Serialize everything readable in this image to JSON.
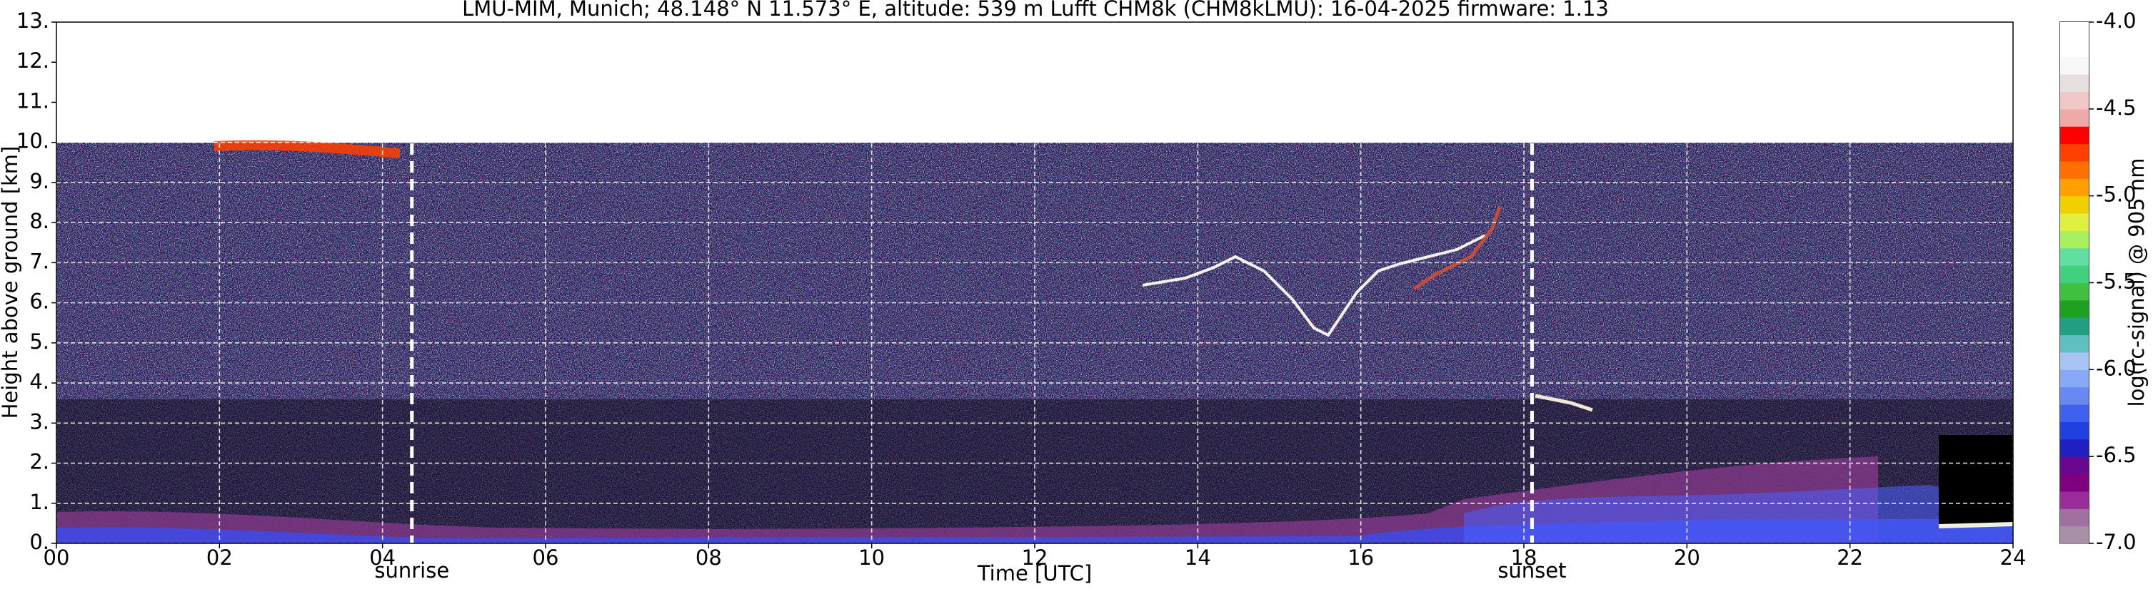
{
  "chart_data": {
    "type": "heatmap",
    "title": "LMU-MIM, Munich; 48.148° N 11.573° E, altitude: 539 m    Lufft CHM8k (CHM8kLMU): 16-04-2025    firmware: 1.13",
    "x_label": "Time [UTC]",
    "y_label": "Height above ground [km]",
    "colorbar_label": "log(rc-signal) @ 905 nm",
    "xlim": [
      0,
      24
    ],
    "xticks": [
      {
        "value": 0,
        "label": "00"
      },
      {
        "value": 2,
        "label": "02"
      },
      {
        "value": 4,
        "label": "04"
      },
      {
        "value": 6,
        "label": "06"
      },
      {
        "value": 8,
        "label": "08"
      },
      10,
      12,
      14,
      16,
      18,
      20,
      22,
      24
    ],
    "ylim": [
      0,
      13
    ],
    "yticks": [
      {
        "value": 0,
        "label": "0."
      },
      {
        "value": 1,
        "label": "1."
      },
      {
        "value": 2,
        "label": "2."
      },
      {
        "value": 3,
        "label": "3."
      },
      {
        "value": 4,
        "label": "4."
      },
      {
        "value": 5,
        "label": "5."
      },
      {
        "value": 6,
        "label": "6."
      },
      {
        "value": 7,
        "label": "7."
      },
      {
        "value": 8,
        "label": "8."
      },
      {
        "value": 9,
        "label": "9."
      },
      {
        "value": 10,
        "label": "10."
      },
      {
        "value": 11,
        "label": "11."
      },
      {
        "value": 12,
        "label": "12."
      },
      {
        "value": 13,
        "label": "13."
      }
    ],
    "clim": [
      -7,
      -4
    ],
    "cticks": [
      {
        "value": -4,
        "label": "-4.0"
      },
      -4.5,
      {
        "value": -5,
        "label": "-5.0"
      },
      -5.5,
      {
        "value": -6,
        "label": "-6.0"
      },
      -6.5,
      {
        "value": -7,
        "label": "-7.0"
      }
    ],
    "colors": [
      "#a890a8",
      "#a070a0",
      "#982c98",
      "#800080",
      "#680890",
      "#2020c0",
      "#2040e0",
      "#4060f0",
      "#6888f4",
      "#88a8f8",
      "#a8c4f4",
      "#60c0c0",
      "#20a080",
      "#20a020",
      "#40c040",
      "#40d080",
      "#60e0a0",
      "#a8f060",
      "#e0f040",
      "#f0d000",
      "#ffa000",
      "#ff7000",
      "#ff4000",
      "#ff0000",
      "#f0a8a8",
      "#f0c8c8",
      "#e8e0e0",
      "#f8f8f8",
      "#ffffff",
      "#ffffff"
    ],
    "grid": true,
    "annotations": [
      {
        "text": "sunrise",
        "x": 4.36
      },
      {
        "text": "sunset",
        "x": 18.1
      }
    ]
  }
}
